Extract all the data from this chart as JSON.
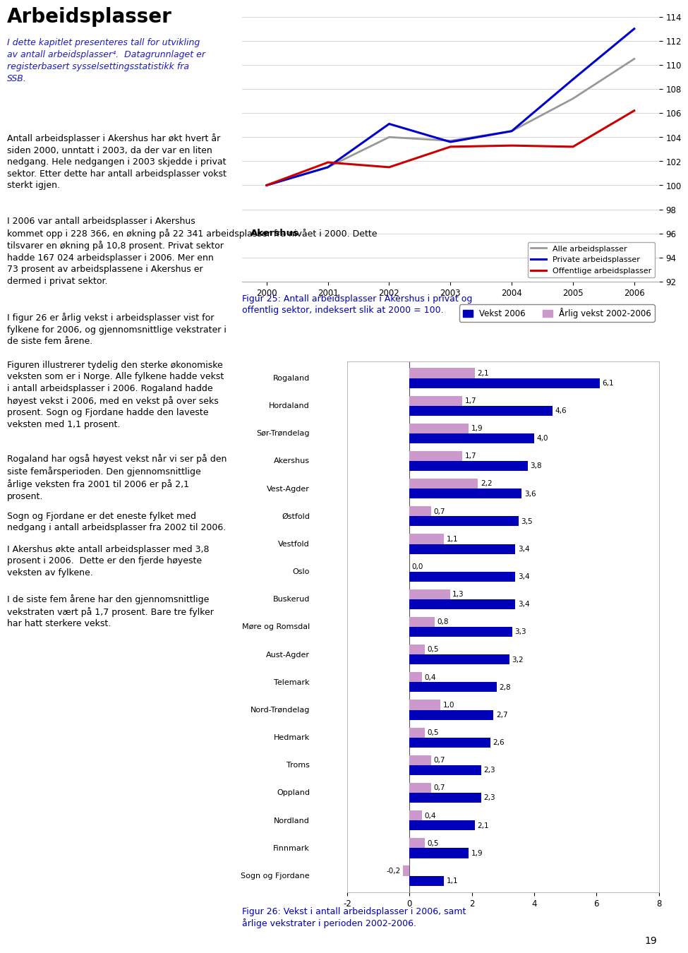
{
  "fig25": {
    "caption_line1": "Figur 25: Antall arbeidsplasser i Akershus i privat og",
    "caption_line2": "offentlig sektor, indeksert slik at 2000 = 100.",
    "years": [
      2000,
      2001,
      2002,
      2003,
      2004,
      2005,
      2006
    ],
    "alle": [
      100.0,
      101.5,
      104.0,
      103.7,
      104.5,
      107.2,
      110.5
    ],
    "private": [
      100.0,
      101.5,
      105.1,
      103.6,
      104.5,
      108.8,
      113.0
    ],
    "offentlige": [
      100.0,
      101.9,
      101.5,
      103.2,
      103.3,
      103.2,
      106.2
    ],
    "alle_color": "#999999",
    "private_color": "#0000CC",
    "offentlige_color": "#CC0000",
    "ylim": [
      92,
      114
    ],
    "yticks": [
      92,
      94,
      96,
      98,
      100,
      102,
      104,
      106,
      108,
      110,
      112,
      114
    ],
    "legend_labels": [
      "Alle arbeidsplasser",
      "Private arbeidsplasser",
      "Offentlige arbeidsplasser"
    ]
  },
  "fig26": {
    "caption_line1": "Figur 26: Vekst i antall arbeidsplasser i 2006, samt",
    "caption_line2": "årlige vekstrater i perioden 2002-2006.",
    "categories": [
      "Rogaland",
      "Hordaland",
      "Sør-Trøndelag",
      "Akershus",
      "Vest-Agder",
      "Østfold",
      "Vestfold",
      "Oslo",
      "Buskerud",
      "Møre og Romsdal",
      "Aust-Agder",
      "Telemark",
      "Nord-Trøndelag",
      "Hedmark",
      "Troms",
      "Oppland",
      "Nordland",
      "Finnmark",
      "Sogn og Fjordane"
    ],
    "vekst2006": [
      6.1,
      4.6,
      4.0,
      3.8,
      3.6,
      3.5,
      3.4,
      3.4,
      3.4,
      3.3,
      3.2,
      2.8,
      2.7,
      2.6,
      2.3,
      2.3,
      2.1,
      1.9,
      1.1
    ],
    "arlig2002_2006": [
      2.1,
      1.7,
      1.9,
      1.7,
      2.2,
      0.7,
      1.1,
      0.0,
      1.3,
      0.8,
      0.5,
      0.4,
      1.0,
      0.5,
      0.7,
      0.7,
      0.4,
      0.5,
      -0.2
    ],
    "vekst_color": "#0000BB",
    "arlig_color": "#CC99CC",
    "xlim": [
      -2,
      8
    ],
    "xticks": [
      -2,
      0,
      2,
      4,
      6,
      8
    ],
    "legend_labels": [
      "Vekst 2006",
      "Årlig vekst 2002-2006"
    ]
  },
  "title": "Arbeidsplasser",
  "title_color": "#000000",
  "intro_color": "#1a1acc",
  "caption_color": "#0000BB",
  "body_color": "#000000",
  "bg_color": "#ffffff"
}
